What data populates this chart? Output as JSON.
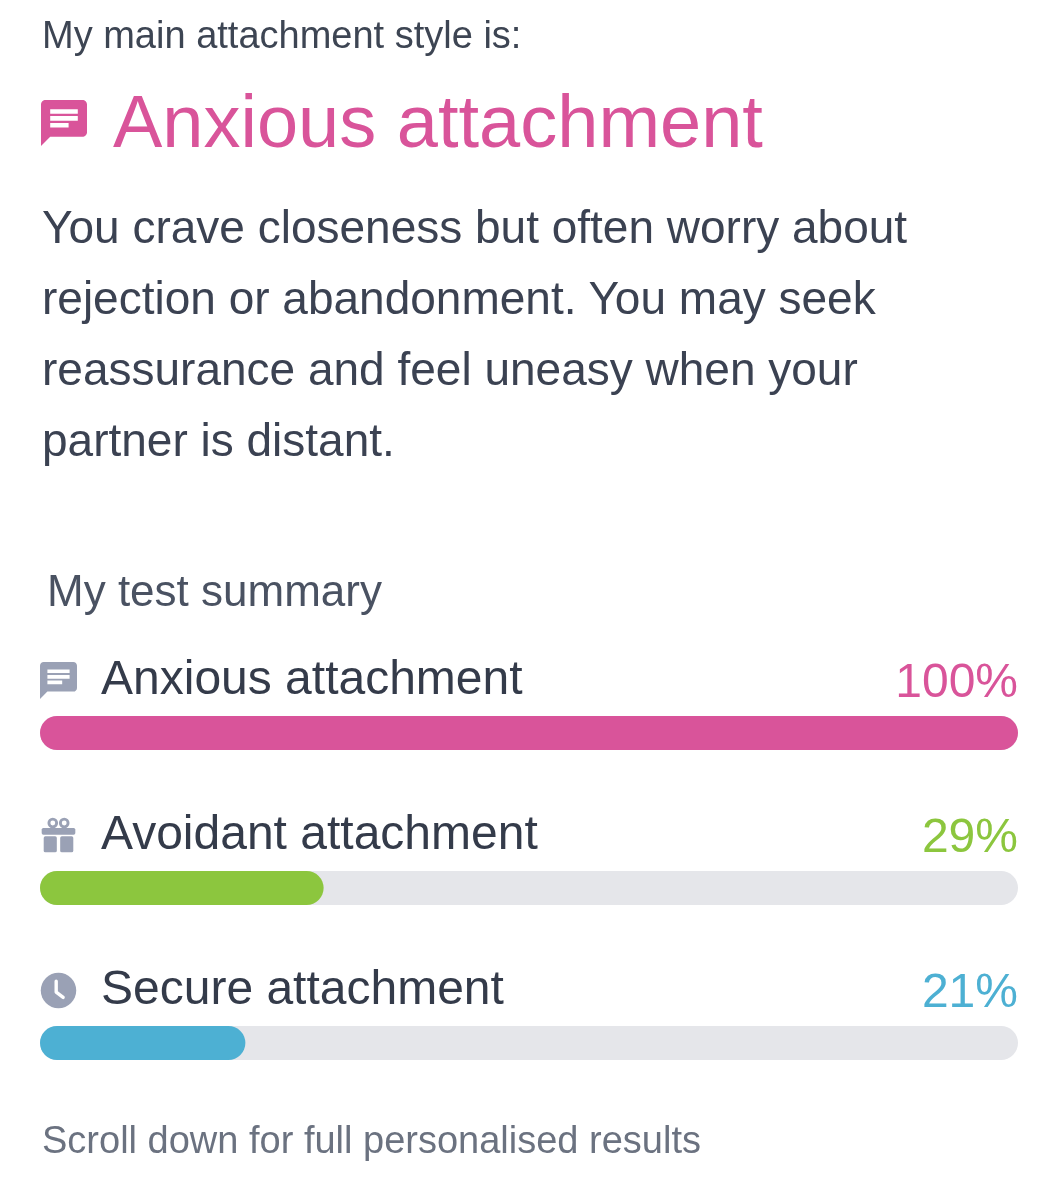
{
  "chart_data": {
    "type": "bar",
    "orientation": "horizontal",
    "title": "My test summary",
    "categories": [
      "Anxious attachment",
      "Avoidant attachment",
      "Secure attachment"
    ],
    "values": [
      100,
      29,
      21
    ],
    "colors": [
      "#d9549a",
      "#8cc63e",
      "#4db0d3"
    ],
    "value_labels": [
      "100%",
      "29%",
      "21%"
    ],
    "xlim": [
      0,
      100
    ],
    "tick_labels": "y",
    "annotations": [
      "My main attachment style is:",
      "Anxious attachment",
      "You crave closeness but often worry about rejection or abandonment. You may seek reassurance and feel uneasy when your partner is distant.",
      "Scroll down for full personalised results"
    ]
  }
}
